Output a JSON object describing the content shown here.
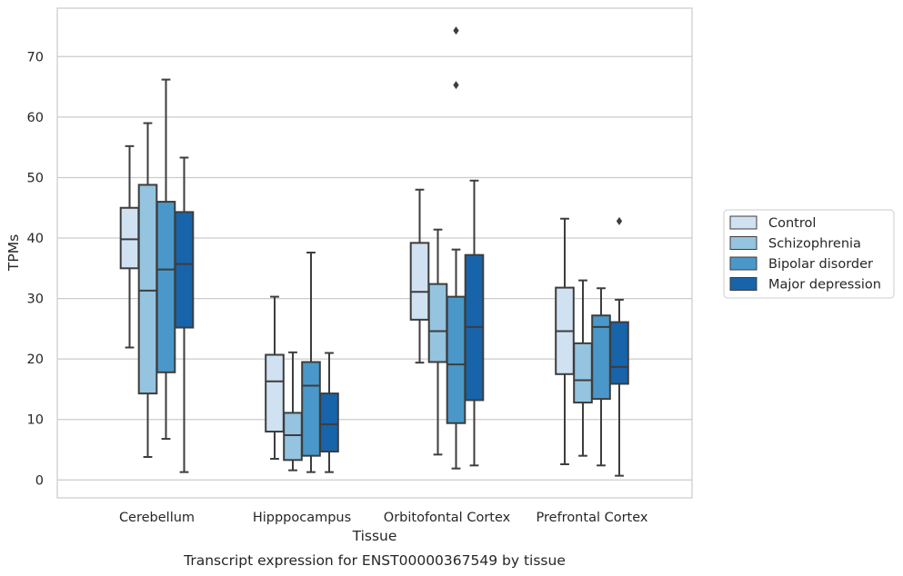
{
  "chart_data": {
    "type": "box",
    "title": "",
    "caption": "Transcript expression for ENST00000367549 by tissue",
    "xlabel": "Tissue",
    "ylabel": "TPMs",
    "ylim": [
      -3,
      78
    ],
    "yticks": [
      0,
      10,
      20,
      30,
      40,
      50,
      60,
      70
    ],
    "grid": "horizontal",
    "legend_position": "right",
    "categories": [
      "Cerebellum",
      "Hipppocampus",
      "Orbitofontal Cortex",
      "Prefrontal Cortex"
    ],
    "series": [
      {
        "name": "Control",
        "color": "#d0e1f2",
        "boxes": [
          {
            "whislo": 21.9,
            "q1": 35.0,
            "med": 39.8,
            "q3": 45.0,
            "whishi": 55.2,
            "fliers": []
          },
          {
            "whislo": 3.5,
            "q1": 8.0,
            "med": 16.3,
            "q3": 20.7,
            "whishi": 30.3,
            "fliers": []
          },
          {
            "whislo": 19.4,
            "q1": 26.5,
            "med": 31.1,
            "q3": 39.2,
            "whishi": 48.0,
            "fliers": []
          },
          {
            "whislo": 2.6,
            "q1": 17.5,
            "med": 24.6,
            "q3": 31.8,
            "whishi": 43.2,
            "fliers": []
          }
        ]
      },
      {
        "name": "Schizophrenia",
        "color": "#94c4df",
        "boxes": [
          {
            "whislo": 3.8,
            "q1": 14.3,
            "med": 31.3,
            "q3": 48.8,
            "whishi": 59.0,
            "fliers": []
          },
          {
            "whislo": 1.6,
            "q1": 3.3,
            "med": 7.4,
            "q3": 11.1,
            "whishi": 21.1,
            "fliers": []
          },
          {
            "whislo": 4.2,
            "q1": 19.5,
            "med": 24.6,
            "q3": 32.4,
            "whishi": 41.4,
            "fliers": []
          },
          {
            "whislo": 4.0,
            "q1": 12.8,
            "med": 16.5,
            "q3": 22.6,
            "whishi": 33.0,
            "fliers": []
          }
        ]
      },
      {
        "name": "Bipolar disorder",
        "color": "#4a98c9",
        "boxes": [
          {
            "whislo": 6.8,
            "q1": 17.8,
            "med": 34.8,
            "q3": 46.0,
            "whishi": 66.2,
            "fliers": []
          },
          {
            "whislo": 1.3,
            "q1": 4.0,
            "med": 15.6,
            "q3": 19.5,
            "whishi": 37.6,
            "fliers": []
          },
          {
            "whislo": 1.9,
            "q1": 9.4,
            "med": 19.1,
            "q3": 30.3,
            "whishi": 38.1,
            "fliers": [
              65.3,
              74.3
            ]
          },
          {
            "whislo": 2.4,
            "q1": 13.4,
            "med": 25.3,
            "q3": 27.2,
            "whishi": 31.7,
            "fliers": []
          }
        ]
      },
      {
        "name": "Major depression",
        "color": "#1764ab",
        "boxes": [
          {
            "whislo": 1.3,
            "q1": 25.2,
            "med": 35.7,
            "q3": 44.3,
            "whishi": 53.3,
            "fliers": []
          },
          {
            "whislo": 1.3,
            "q1": 4.7,
            "med": 9.2,
            "q3": 14.3,
            "whishi": 21.0,
            "fliers": []
          },
          {
            "whislo": 2.4,
            "q1": 13.2,
            "med": 25.3,
            "q3": 37.2,
            "whishi": 49.5,
            "fliers": []
          },
          {
            "whislo": 0.7,
            "q1": 15.9,
            "med": 18.7,
            "q3": 26.1,
            "whishi": 29.8,
            "fliers": [
              42.8
            ]
          }
        ]
      }
    ]
  }
}
